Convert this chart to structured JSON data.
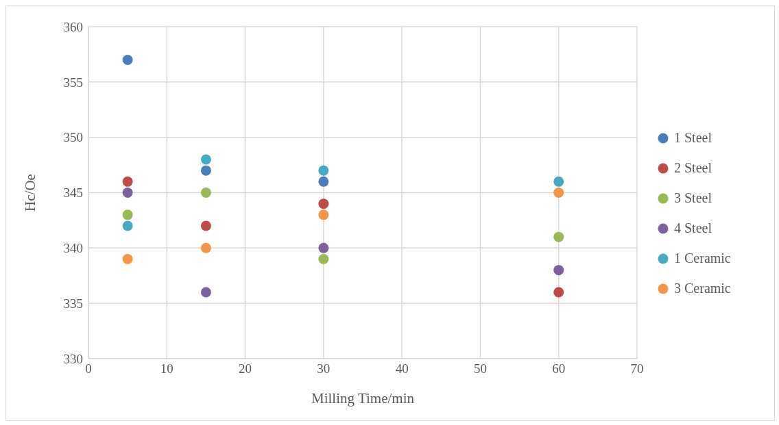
{
  "chart_data": {
    "type": "scatter",
    "xlabel": "Milling Time/min",
    "ylabel": "Hc/Oe",
    "x": [
      5,
      15,
      30,
      60
    ],
    "series": [
      {
        "name": "1 Steel",
        "color": "#4a7ebb",
        "values": [
          357,
          347,
          346,
          null
        ]
      },
      {
        "name": "2 Steel",
        "color": "#be4b48",
        "values": [
          346,
          342,
          344,
          336
        ]
      },
      {
        "name": "3 Steel",
        "color": "#98b954",
        "values": [
          343,
          345,
          339,
          341
        ]
      },
      {
        "name": "4 Steel",
        "color": "#7d60a0",
        "values": [
          345,
          336,
          340,
          338
        ]
      },
      {
        "name": "1 Ceramic",
        "color": "#46aac5",
        "values": [
          342,
          348,
          347,
          346
        ]
      },
      {
        "name": "3 Ceramic",
        "color": "#f69544",
        "values": [
          339,
          340,
          343,
          345
        ]
      }
    ],
    "xlim": [
      0,
      70
    ],
    "xticks": [
      0,
      10,
      20,
      30,
      40,
      50,
      60,
      70
    ],
    "ylim": [
      330,
      360
    ],
    "yticks": [
      330,
      335,
      340,
      345,
      350,
      355,
      360
    ],
    "grid": true,
    "legend": "right",
    "marker": "circle"
  }
}
